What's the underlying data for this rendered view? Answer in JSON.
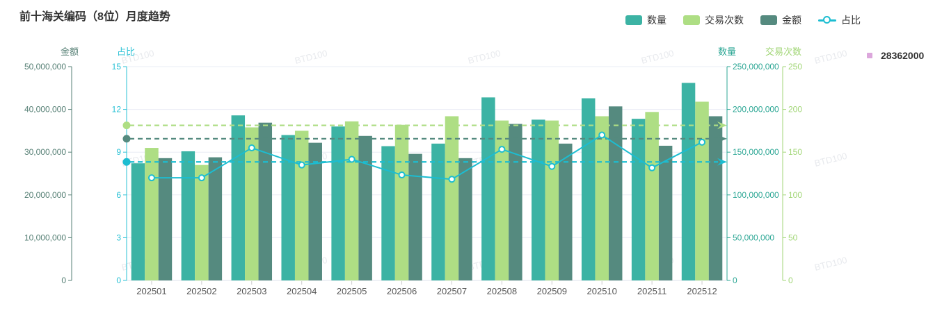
{
  "header": {
    "title": "前十海关编码（8位）月度趋势"
  },
  "legend": {
    "position": "top-right",
    "items": [
      {
        "id": "quantity",
        "label": "数量",
        "color": "#3cb3a4",
        "icon": "bar"
      },
      {
        "id": "transactions",
        "label": "交易次数",
        "color": "#aede84",
        "icon": "bar"
      },
      {
        "id": "amount",
        "label": "金额",
        "color": "#558a7f",
        "icon": "bar"
      },
      {
        "id": "ratio",
        "label": "占比",
        "color": "#1cbdd1",
        "icon": "line"
      }
    ]
  },
  "side_legend": {
    "label": "28362000",
    "color": "#dca7dc"
  },
  "watermark": {
    "text": "BTD100"
  },
  "chart_data": {
    "type": "bar",
    "subtype": "grouped-bars-with-line-overlay",
    "title": "前十海关编码（8位）月度趋势",
    "categories": [
      "202501",
      "202502",
      "202503",
      "202504",
      "202505",
      "202506",
      "202507",
      "202508",
      "202509",
      "202510",
      "202511",
      "202512"
    ],
    "series": [
      {
        "name": "数量",
        "type": "bar",
        "axis": "quantity",
        "color": "#3cb3a4",
        "values": [
          137000000,
          151000000,
          193000000,
          170000000,
          180000000,
          157000000,
          160000000,
          214000000,
          188000000,
          213000000,
          189000000,
          231000000
        ]
      },
      {
        "name": "交易次数",
        "type": "bar",
        "axis": "transactions",
        "color": "#aede84",
        "mark_line": "average",
        "values": [
          155,
          135,
          179,
          175,
          186,
          182,
          192,
          187,
          187,
          192,
          197,
          209
        ]
      },
      {
        "name": "金额",
        "type": "bar",
        "axis": "amount",
        "color": "#558a7f",
        "mark_line": "average",
        "values": [
          28600000,
          28800000,
          36900000,
          32200000,
          33800000,
          29600000,
          28600000,
          36600000,
          32000000,
          40700000,
          31500000,
          38400000
        ]
      },
      {
        "name": "占比",
        "type": "line",
        "axis": "ratio",
        "color": "#1cbdd1",
        "marker": "circle",
        "mark_line": "average",
        "values": [
          7.2,
          7.2,
          9.3,
          8.1,
          8.5,
          7.4,
          7.1,
          9.2,
          8,
          10.2,
          7.9,
          9.7
        ]
      }
    ],
    "axes": [
      {
        "id": "amount",
        "title": "金额",
        "side": "left",
        "min": 0,
        "max": 50000000,
        "interval": 10000000,
        "color": "#557f74",
        "format": "thousands"
      },
      {
        "id": "ratio",
        "title": "占比",
        "side": "left",
        "min": 0,
        "max": 15,
        "interval": 3,
        "color": "#29c1d5",
        "format": "plain"
      },
      {
        "id": "quantity",
        "title": "数量",
        "side": "right",
        "min": 0,
        "max": 250000000,
        "interval": 50000000,
        "color": "#2da795",
        "format": "thousands"
      },
      {
        "id": "transactions",
        "title": "交易次数",
        "side": "right",
        "min": 0,
        "max": 250,
        "interval": 50,
        "color": "#a2d677",
        "format": "plain"
      }
    ],
    "x_axis": {
      "label_color": "#555"
    },
    "grid": true,
    "legend_position": "top-right"
  }
}
